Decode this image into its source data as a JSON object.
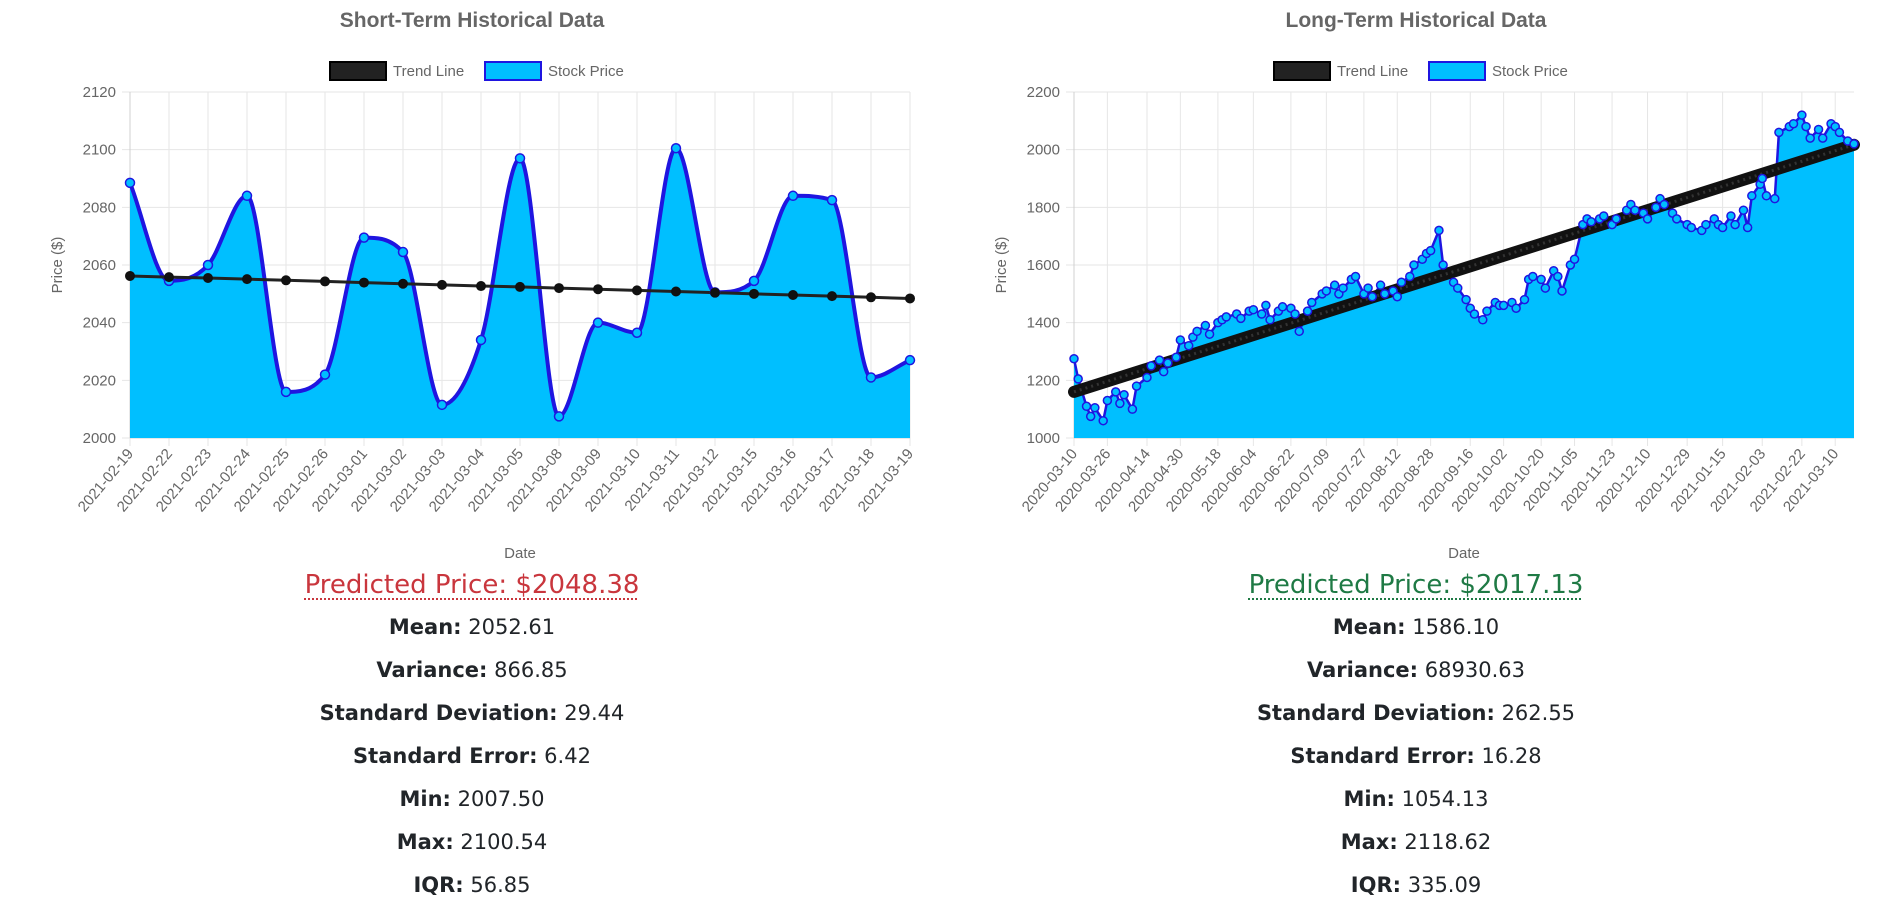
{
  "colors": {
    "fill": "#00bfff",
    "line": "#1f15e0",
    "trend": "#222222",
    "predicted_short": "#c9363d",
    "predicted_long": "#1f7a45",
    "grid": "#e6e6e6",
    "text": "#666666"
  },
  "chart_data": [
    {
      "type": "line",
      "title": "Short-Term Historical Data",
      "xlabel": "Date",
      "ylabel": "Price ($)",
      "ylim": [
        2000,
        2120
      ],
      "yticks": [
        2000,
        2020,
        2040,
        2060,
        2080,
        2100,
        2120
      ],
      "grid": true,
      "legend": "top",
      "categories": [
        "2021-02-19",
        "2021-02-22",
        "2021-02-23",
        "2021-02-24",
        "2021-02-25",
        "2021-02-26",
        "2021-03-01",
        "2021-03-02",
        "2021-03-03",
        "2021-03-04",
        "2021-03-05",
        "2021-03-08",
        "2021-03-09",
        "2021-03-10",
        "2021-03-11",
        "2021-03-12",
        "2021-03-15",
        "2021-03-16",
        "2021-03-17",
        "2021-03-18",
        "2021-03-19"
      ],
      "series": [
        {
          "name": "Trend Line",
          "type": "line",
          "values": [
            2056.2,
            2055.8,
            2055.5,
            2055.1,
            2054.7,
            2054.3,
            2053.9,
            2053.5,
            2053.1,
            2052.7,
            2052.4,
            2052.0,
            2051.6,
            2051.2,
            2050.8,
            2050.4,
            2050.0,
            2049.6,
            2049.2,
            2048.8,
            2048.4
          ]
        },
        {
          "name": "Stock Price",
          "type": "area",
          "values": [
            2088.5,
            2054.5,
            2060.0,
            2084.0,
            2016.0,
            2022.0,
            2069.5,
            2064.5,
            2011.5,
            2034.0,
            2097.0,
            2007.5,
            2040.0,
            2036.5,
            2100.5,
            2050.5,
            2054.5,
            2084.0,
            2082.5,
            2021.0,
            2027.0
          ]
        }
      ],
      "predicted_label": "Predicted Price:",
      "predicted_value": "$2048.38",
      "stats": {
        "mean_label": "Mean:",
        "mean": "2052.61",
        "variance_label": "Variance:",
        "variance": "866.85",
        "std_label": "Standard Deviation:",
        "std": "29.44",
        "se_label": "Standard Error:",
        "se": "6.42",
        "min_label": "Min:",
        "min": "2007.50",
        "max_label": "Max:",
        "max": "2100.54",
        "iqr_label": "IQR:",
        "iqr": "56.85"
      }
    },
    {
      "type": "line",
      "title": "Long-Term Historical Data",
      "xlabel": "Date",
      "ylabel": "Price ($)",
      "ylim": [
        1000,
        2200
      ],
      "yticks": [
        1000,
        1200,
        1400,
        1600,
        1800,
        2000,
        2200
      ],
      "grid": true,
      "legend": "top",
      "x_start": "2020-03-10",
      "x_end": "2021-03-19",
      "xtick_labels": [
        "2020-03-10",
        "2020-03-26",
        "2020-04-14",
        "2020-04-30",
        "2020-05-18",
        "2020-06-04",
        "2020-06-22",
        "2020-07-09",
        "2020-07-27",
        "2020-08-12",
        "2020-08-28",
        "2020-09-16",
        "2020-10-02",
        "2020-10-20",
        "2020-11-05",
        "2020-11-23",
        "2020-12-10",
        "2020-12-29",
        "2021-01-15",
        "2021-02-03",
        "2021-02-22",
        "2021-03-10"
      ],
      "series": [
        {
          "name": "Trend Line",
          "type": "line",
          "x": [
            "2020-03-10",
            "2021-03-19"
          ],
          "values": [
            1160,
            2017
          ]
        },
        {
          "name": "Stock Price",
          "type": "area",
          "x": [
            "2020-03-10",
            "2020-03-12",
            "2020-03-16",
            "2020-03-18",
            "2020-03-20",
            "2020-03-24",
            "2020-03-26",
            "2020-03-30",
            "2020-04-01",
            "2020-04-03",
            "2020-04-07",
            "2020-04-09",
            "2020-04-14",
            "2020-04-16",
            "2020-04-20",
            "2020-04-22",
            "2020-04-24",
            "2020-04-28",
            "2020-04-30",
            "2020-05-04",
            "2020-05-06",
            "2020-05-08",
            "2020-05-12",
            "2020-05-14",
            "2020-05-18",
            "2020-05-20",
            "2020-05-22",
            "2020-05-27",
            "2020-05-29",
            "2020-06-02",
            "2020-06-04",
            "2020-06-08",
            "2020-06-10",
            "2020-06-12",
            "2020-06-16",
            "2020-06-18",
            "2020-06-22",
            "2020-06-24",
            "2020-06-26",
            "2020-06-30",
            "2020-07-02",
            "2020-07-07",
            "2020-07-09",
            "2020-07-13",
            "2020-07-15",
            "2020-07-17",
            "2020-07-21",
            "2020-07-23",
            "2020-07-27",
            "2020-07-29",
            "2020-07-31",
            "2020-08-04",
            "2020-08-06",
            "2020-08-10",
            "2020-08-12",
            "2020-08-14",
            "2020-08-18",
            "2020-08-20",
            "2020-08-24",
            "2020-08-26",
            "2020-08-28",
            "2020-09-01",
            "2020-09-03",
            "2020-09-08",
            "2020-09-10",
            "2020-09-14",
            "2020-09-16",
            "2020-09-18",
            "2020-09-22",
            "2020-09-24",
            "2020-09-28",
            "2020-09-30",
            "2020-10-02",
            "2020-10-06",
            "2020-10-08",
            "2020-10-12",
            "2020-10-14",
            "2020-10-16",
            "2020-10-20",
            "2020-10-22",
            "2020-10-26",
            "2020-10-28",
            "2020-10-30",
            "2020-11-03",
            "2020-11-05",
            "2020-11-09",
            "2020-11-11",
            "2020-11-13",
            "2020-11-17",
            "2020-11-19",
            "2020-11-23",
            "2020-11-25",
            "2020-11-30",
            "2020-12-02",
            "2020-12-04",
            "2020-12-08",
            "2020-12-10",
            "2020-12-14",
            "2020-12-16",
            "2020-12-18",
            "2020-12-22",
            "2020-12-24",
            "2020-12-29",
            "2020-12-31",
            "2021-01-05",
            "2021-01-07",
            "2021-01-11",
            "2021-01-13",
            "2021-01-15",
            "2021-01-19",
            "2021-01-21",
            "2021-01-25",
            "2021-01-27",
            "2021-01-29",
            "2021-02-02",
            "2021-02-03",
            "2021-02-05",
            "2021-02-09",
            "2021-02-11",
            "2021-02-16",
            "2021-02-18",
            "2021-02-22",
            "2021-02-24",
            "2021-02-26",
            "2021-03-02",
            "2021-03-04",
            "2021-03-08",
            "2021-03-10",
            "2021-03-12",
            "2021-03-16",
            "2021-03-19"
          ],
          "values": [
            1275,
            1205,
            1110,
            1075,
            1105,
            1060,
            1130,
            1160,
            1120,
            1150,
            1100,
            1180,
            1210,
            1250,
            1270,
            1230,
            1260,
            1280,
            1340,
            1320,
            1350,
            1370,
            1390,
            1360,
            1400,
            1410,
            1420,
            1430,
            1415,
            1440,
            1445,
            1430,
            1460,
            1410,
            1440,
            1455,
            1450,
            1430,
            1370,
            1440,
            1470,
            1500,
            1510,
            1530,
            1500,
            1520,
            1550,
            1560,
            1500,
            1520,
            1490,
            1530,
            1500,
            1510,
            1490,
            1540,
            1560,
            1600,
            1620,
            1640,
            1650,
            1720,
            1600,
            1540,
            1520,
            1480,
            1450,
            1430,
            1410,
            1440,
            1470,
            1460,
            1460,
            1470,
            1450,
            1480,
            1550,
            1560,
            1550,
            1520,
            1580,
            1560,
            1510,
            1600,
            1620,
            1740,
            1760,
            1750,
            1760,
            1770,
            1740,
            1760,
            1790,
            1810,
            1790,
            1780,
            1760,
            1800,
            1830,
            1810,
            1780,
            1760,
            1740,
            1730,
            1720,
            1740,
            1760,
            1740,
            1730,
            1770,
            1740,
            1790,
            1730,
            1840,
            1880,
            1900,
            1840,
            1830,
            2060,
            2080,
            2090,
            2120,
            2080,
            2040,
            2070,
            2040,
            2090,
            2080,
            2060,
            2030,
            2020
          ]
        }
      ],
      "predicted_label": "Predicted Price:",
      "predicted_value": "$2017.13",
      "stats": {
        "mean_label": "Mean:",
        "mean": "1586.10",
        "variance_label": "Variance:",
        "variance": "68930.63",
        "std_label": "Standard Deviation:",
        "std": "262.55",
        "se_label": "Standard Error:",
        "se": "16.28",
        "min_label": "Min:",
        "min": "1054.13",
        "max_label": "Max:",
        "max": "2118.62",
        "iqr_label": "IQR:",
        "iqr": "335.09"
      }
    }
  ]
}
